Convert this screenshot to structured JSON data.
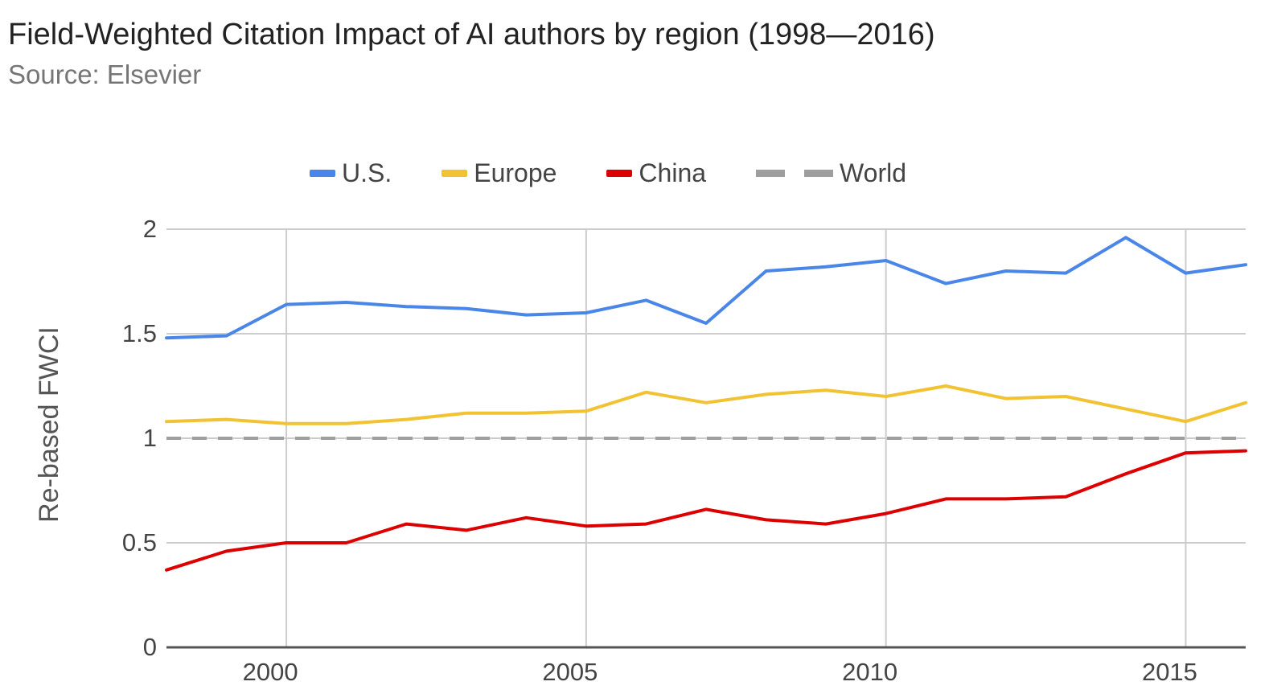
{
  "chart_data": {
    "type": "line",
    "title": "Field-Weighted Citation Impact of AI authors by region (1998—2016)",
    "subtitle": "Source: Elsevier",
    "xlabel": "",
    "ylabel": "Re-based FWCI",
    "xlim": [
      1998,
      2016
    ],
    "ylim": [
      0,
      2
    ],
    "x_ticks": [
      2000,
      2005,
      2010,
      2015
    ],
    "y_ticks": [
      0,
      0.5,
      1,
      1.5,
      2
    ],
    "y_tick_labels": [
      "0",
      "0.5",
      "1",
      "1.5",
      "2"
    ],
    "grid": true,
    "legend_position": "top",
    "x": [
      1998,
      1999,
      2000,
      2001,
      2002,
      2003,
      2004,
      2005,
      2006,
      2007,
      2008,
      2009,
      2010,
      2011,
      2012,
      2013,
      2014,
      2015,
      2016
    ],
    "series": [
      {
        "name": "U.S.",
        "color": "#4a86e8",
        "style": "solid",
        "values": [
          1.48,
          1.49,
          1.64,
          1.65,
          1.63,
          1.62,
          1.59,
          1.6,
          1.66,
          1.55,
          1.8,
          1.82,
          1.85,
          1.74,
          1.8,
          1.79,
          1.96,
          1.79,
          1.83
        ]
      },
      {
        "name": "Europe",
        "color": "#f1c232",
        "style": "solid",
        "values": [
          1.08,
          1.09,
          1.07,
          1.07,
          1.09,
          1.12,
          1.12,
          1.13,
          1.22,
          1.17,
          1.21,
          1.23,
          1.2,
          1.25,
          1.19,
          1.2,
          1.14,
          1.08,
          1.17
        ]
      },
      {
        "name": "China",
        "color": "#dd0000",
        "style": "solid",
        "values": [
          0.37,
          0.46,
          0.5,
          0.5,
          0.59,
          0.56,
          0.62,
          0.58,
          0.59,
          0.66,
          0.61,
          0.59,
          0.64,
          0.71,
          0.71,
          0.72,
          0.83,
          0.93,
          0.94
        ]
      },
      {
        "name": "World",
        "color": "#9e9e9e",
        "style": "dashed",
        "values": [
          1,
          1,
          1,
          1,
          1,
          1,
          1,
          1,
          1,
          1,
          1,
          1,
          1,
          1,
          1,
          1,
          1,
          1,
          1
        ]
      }
    ]
  }
}
